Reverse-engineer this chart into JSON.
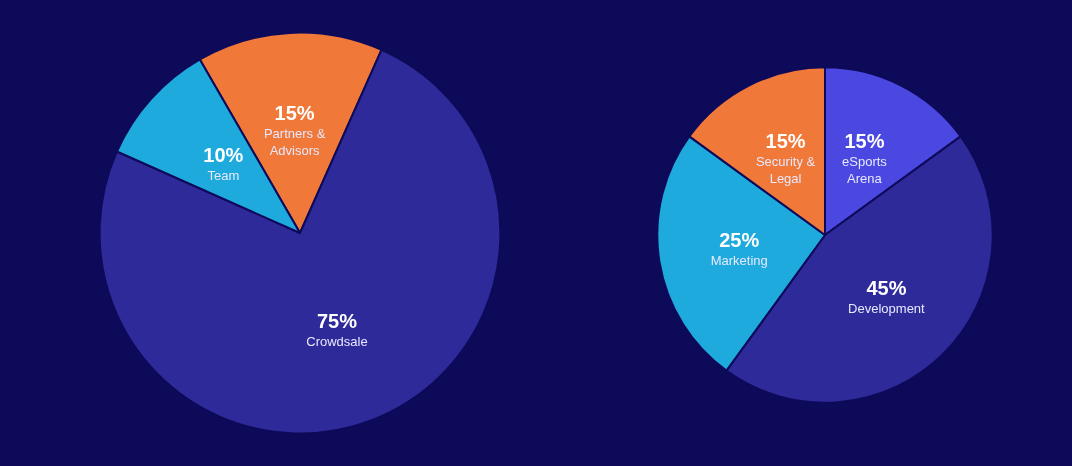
{
  "chart_data": [
    {
      "type": "pie",
      "categories": [
        "Partners & Advisors",
        "Crowdsale",
        "Team"
      ],
      "values": [
        15,
        75,
        10
      ],
      "value_labels": [
        "15%",
        "75%",
        "10%"
      ],
      "colors": [
        "#f07838",
        "#2f2a9a",
        "#1eaadc"
      ],
      "legend": false
    },
    {
      "type": "pie",
      "categories": [
        "eSports Arena",
        "Development",
        "Marketing",
        "Security & Legal"
      ],
      "values": [
        15,
        45,
        25,
        15
      ],
      "value_labels": [
        "15%",
        "45%",
        "25%",
        "15%"
      ],
      "colors": [
        "#4a48e0",
        "#2f2a9a",
        "#1eaadc",
        "#f07838"
      ],
      "legend": false
    }
  ]
}
